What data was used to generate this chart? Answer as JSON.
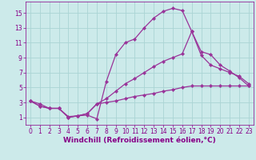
{
  "xlabel": "Windchill (Refroidissement éolien,°C)",
  "bg_color": "#cceaea",
  "grid_color": "#aad4d4",
  "line_color": "#993399",
  "xlim": [
    -0.5,
    23.5
  ],
  "ylim": [
    0,
    16.5
  ],
  "xticks": [
    0,
    1,
    2,
    3,
    4,
    5,
    6,
    7,
    8,
    9,
    10,
    11,
    12,
    13,
    14,
    15,
    16,
    17,
    18,
    19,
    20,
    21,
    22,
    23
  ],
  "yticks": [
    1,
    3,
    5,
    7,
    9,
    11,
    13,
    15
  ],
  "line1_x": [
    0,
    1,
    2,
    3,
    4,
    5,
    6,
    7,
    8,
    9,
    10,
    11,
    12,
    13,
    14,
    15,
    16,
    17,
    18,
    19,
    20,
    21,
    22,
    23
  ],
  "line1_y": [
    3.2,
    2.8,
    2.2,
    2.2,
    1.1,
    1.2,
    1.3,
    0.8,
    5.8,
    9.4,
    11.0,
    11.5,
    13.0,
    14.3,
    15.2,
    15.6,
    15.3,
    12.5,
    9.8,
    9.4,
    8.0,
    7.2,
    6.3,
    5.2
  ],
  "line2_x": [
    0,
    1,
    2,
    3,
    4,
    5,
    6,
    7,
    8,
    9,
    10,
    11,
    12,
    13,
    14,
    15,
    16,
    17,
    18,
    19,
    20,
    21,
    22,
    23
  ],
  "line2_y": [
    3.2,
    2.5,
    2.2,
    2.2,
    1.0,
    1.2,
    1.5,
    2.8,
    3.5,
    4.5,
    5.5,
    6.2,
    7.0,
    7.8,
    8.5,
    9.0,
    9.5,
    12.5,
    9.3,
    8.0,
    7.5,
    7.0,
    6.5,
    5.5
  ],
  "line3_x": [
    0,
    1,
    2,
    3,
    4,
    5,
    6,
    7,
    8,
    9,
    10,
    11,
    12,
    13,
    14,
    15,
    16,
    17,
    18,
    19,
    20,
    21,
    22,
    23
  ],
  "line3_y": [
    3.2,
    2.5,
    2.2,
    2.2,
    1.0,
    1.2,
    1.5,
    2.8,
    3.0,
    3.2,
    3.5,
    3.8,
    4.0,
    4.2,
    4.5,
    4.7,
    5.0,
    5.2,
    5.2,
    5.2,
    5.2,
    5.2,
    5.2,
    5.2
  ],
  "marker": "D",
  "markersize": 2.2,
  "linewidth": 0.9,
  "xlabel_fontsize": 6.5,
  "tick_fontsize": 5.5,
  "tick_color": "#880088",
  "spine_color": "#880088"
}
